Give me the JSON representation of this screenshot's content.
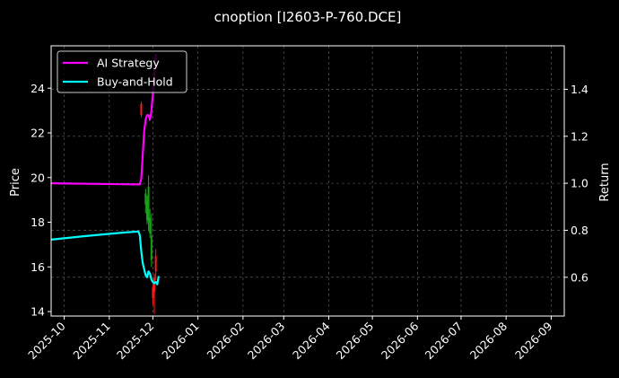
{
  "chart_data": {
    "type": "line",
    "title": "cnoption [I2603-P-760.DCE]",
    "ylabel_left": "Price",
    "ylabel_right": "Return",
    "grid": true,
    "legend_placement": "top-left",
    "x_ticks": [
      "2025-10",
      "2025-11",
      "2025-12",
      "2026-01",
      "2026-02",
      "2026-03",
      "2026-04",
      "2026-05",
      "2026-06",
      "2026-07",
      "2026-08",
      "2026-09"
    ],
    "x_range": [
      "2025-09-22",
      "2026-09-10"
    ],
    "y_left_ticks": [
      14,
      16,
      18,
      20,
      22,
      24
    ],
    "y_left_range": [
      13.8,
      25.9
    ],
    "y_right_ticks": [
      0.6,
      0.8,
      1.0,
      1.2,
      1.4
    ],
    "y_right_range": [
      0.435,
      1.585
    ],
    "series": [
      {
        "name": "AI Strategy",
        "color": "#ff00ff",
        "axis": "right",
        "points": [
          [
            "2025-09-22",
            1.0
          ],
          [
            "2025-10-15",
            0.998
          ],
          [
            "2025-11-10",
            0.996
          ],
          [
            "2025-11-22",
            0.995
          ],
          [
            "2025-11-23",
            1.02
          ],
          [
            "2025-11-24",
            1.12
          ],
          [
            "2025-11-25",
            1.22
          ],
          [
            "2025-11-26",
            1.27
          ],
          [
            "2025-11-27",
            1.29
          ],
          [
            "2025-11-28",
            1.29
          ],
          [
            "2025-11-29",
            1.27
          ],
          [
            "2025-11-30",
            1.31
          ],
          [
            "2025-12-01",
            1.38
          ],
          [
            "2025-12-02",
            1.46
          ],
          [
            "2025-12-03",
            1.55
          ]
        ]
      },
      {
        "name": "Buy-and-Hold",
        "color": "#00ffff",
        "axis": "right",
        "points": [
          [
            "2025-09-22",
            0.76
          ],
          [
            "2025-10-15",
            0.775
          ],
          [
            "2025-11-10",
            0.79
          ],
          [
            "2025-11-21",
            0.795
          ],
          [
            "2025-11-22",
            0.78
          ],
          [
            "2025-11-23",
            0.71
          ],
          [
            "2025-11-24",
            0.66
          ],
          [
            "2025-11-25",
            0.635
          ],
          [
            "2025-11-26",
            0.61
          ],
          [
            "2025-11-27",
            0.6
          ],
          [
            "2025-11-28",
            0.625
          ],
          [
            "2025-11-29",
            0.615
          ],
          [
            "2025-11-30",
            0.59
          ],
          [
            "2025-12-01",
            0.58
          ],
          [
            "2025-12-02",
            0.575
          ],
          [
            "2025-12-03",
            0.58
          ],
          [
            "2025-12-04",
            0.57
          ],
          [
            "2025-12-05",
            0.605
          ]
        ]
      }
    ],
    "candles": [
      {
        "date": "2025-11-23",
        "open": 23.3,
        "close": 22.8,
        "high": 23.4,
        "low": 22.7,
        "color": "#ff1a1a"
      },
      {
        "date": "2025-11-26",
        "open": 18.8,
        "close": 19.3,
        "high": 19.5,
        "low": 18.4,
        "color": "#17a317"
      },
      {
        "date": "2025-11-27",
        "open": 18.1,
        "close": 19.0,
        "high": 19.2,
        "low": 17.9,
        "color": "#17a317"
      },
      {
        "date": "2025-11-28",
        "open": 18.0,
        "close": 19.6,
        "high": 20.1,
        "low": 17.6,
        "color": "#17a317"
      },
      {
        "date": "2025-11-29",
        "open": 17.5,
        "close": 18.2,
        "high": 18.6,
        "low": 17.3,
        "color": "#17a317"
      },
      {
        "date": "2025-11-30",
        "open": 16.3,
        "close": 17.4,
        "high": 18.4,
        "low": 16.0,
        "color": "#17a317"
      },
      {
        "date": "2025-12-01",
        "open": 15.1,
        "close": 14.6,
        "high": 15.2,
        "low": 14.3,
        "color": "#ff1a1a"
      },
      {
        "date": "2025-12-02",
        "open": 15.5,
        "close": 14.9,
        "high": 15.7,
        "low": 13.9,
        "color": "#ff1a1a"
      },
      {
        "date": "2025-12-03",
        "open": 16.5,
        "close": 15.8,
        "high": 16.8,
        "low": 15.4,
        "color": "#ff1a1a"
      }
    ]
  }
}
